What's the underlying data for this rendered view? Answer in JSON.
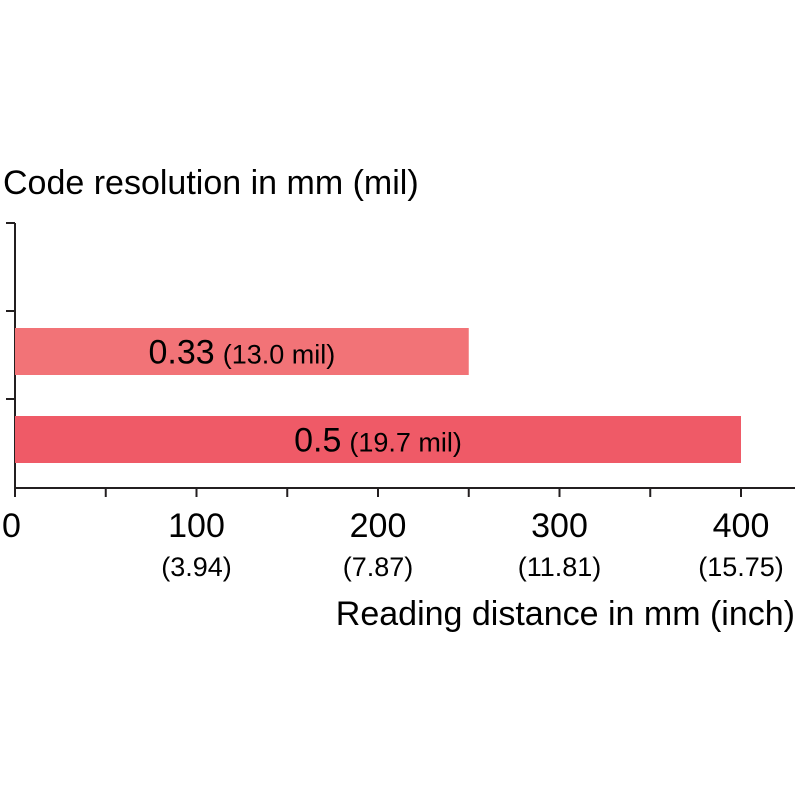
{
  "chart_data": {
    "type": "bar",
    "orientation": "horizontal",
    "title": "Code resolution in mm (mil)",
    "xlabel": "Reading distance in mm (inch)",
    "ylabel": "",
    "xlim": [
      0,
      430
    ],
    "x_ticks": [
      {
        "value": 0,
        "label": "0",
        "sublabel": ""
      },
      {
        "value": 100,
        "label": "100",
        "sublabel": "(3.94)"
      },
      {
        "value": 200,
        "label": "200",
        "sublabel": "(7.87)"
      },
      {
        "value": 300,
        "label": "300",
        "sublabel": "(11.81)"
      },
      {
        "value": 400,
        "label": "400",
        "sublabel": "(15.75)"
      }
    ],
    "x_minor_ticks": [
      50,
      150,
      250,
      350
    ],
    "grid": false,
    "bars": [
      {
        "category": "0.33",
        "label_value": "0.33",
        "label_unit": "(13.0 mil)",
        "start": 0,
        "end": 250,
        "color": "#f27377"
      },
      {
        "category": "0.5",
        "label_value": "0.5",
        "label_unit": "(19.7 mil)",
        "start": 0,
        "end": 400,
        "color": "#ef5a67"
      }
    ]
  }
}
